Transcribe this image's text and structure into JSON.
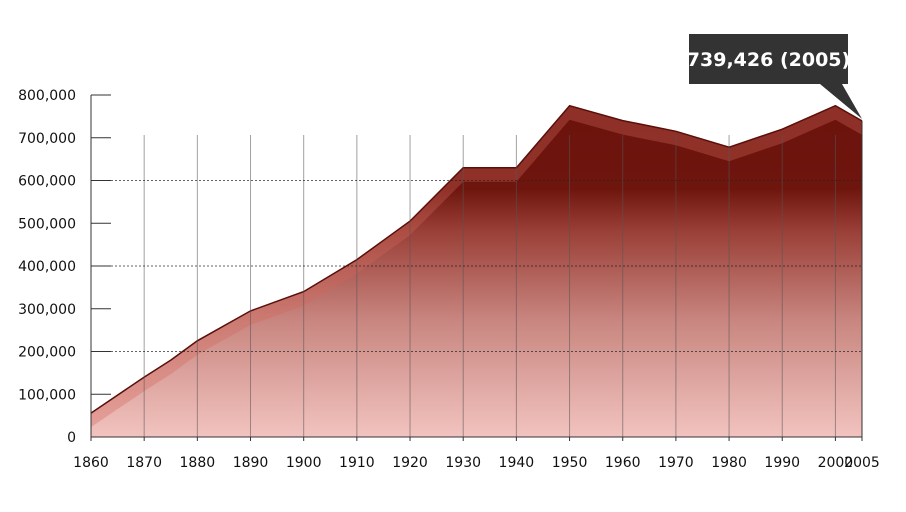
{
  "chart_data": {
    "type": "area",
    "title": "",
    "xlabel": "",
    "ylabel": "",
    "x": [
      1860,
      1870,
      1875,
      1880,
      1890,
      1900,
      1910,
      1920,
      1930,
      1940,
      1950,
      1960,
      1970,
      1980,
      1990,
      2000,
      2005
    ],
    "values": [
      56000,
      140000,
      180000,
      225000,
      295000,
      340000,
      415000,
      505000,
      630000,
      630000,
      775000,
      740000,
      715000,
      678000,
      720000,
      775000,
      739426
    ],
    "xlim": [
      1860,
      2005
    ],
    "ylim": [
      0,
      800000
    ],
    "x_ticks": [
      "1860",
      "1870",
      "1880",
      "1890",
      "1900",
      "1910",
      "1920",
      "1930",
      "1940",
      "1950",
      "1960",
      "1970",
      "1980",
      "1990",
      "2000",
      "2005"
    ],
    "y_ticks": [
      "0",
      "100,000",
      "200,000",
      "300,000",
      "400,000",
      "500,000",
      "600,000",
      "700,000",
      "800,000"
    ],
    "grid_lines_dotted": [
      "200,000",
      "400,000",
      "600,000"
    ],
    "callout": "739,426 (2005)",
    "colors": {
      "area_top": "#6b130c",
      "area_bottom": "#f2c3bf",
      "band": "#d2665c",
      "callout_bg": "#333333",
      "axis": "#333333"
    }
  }
}
